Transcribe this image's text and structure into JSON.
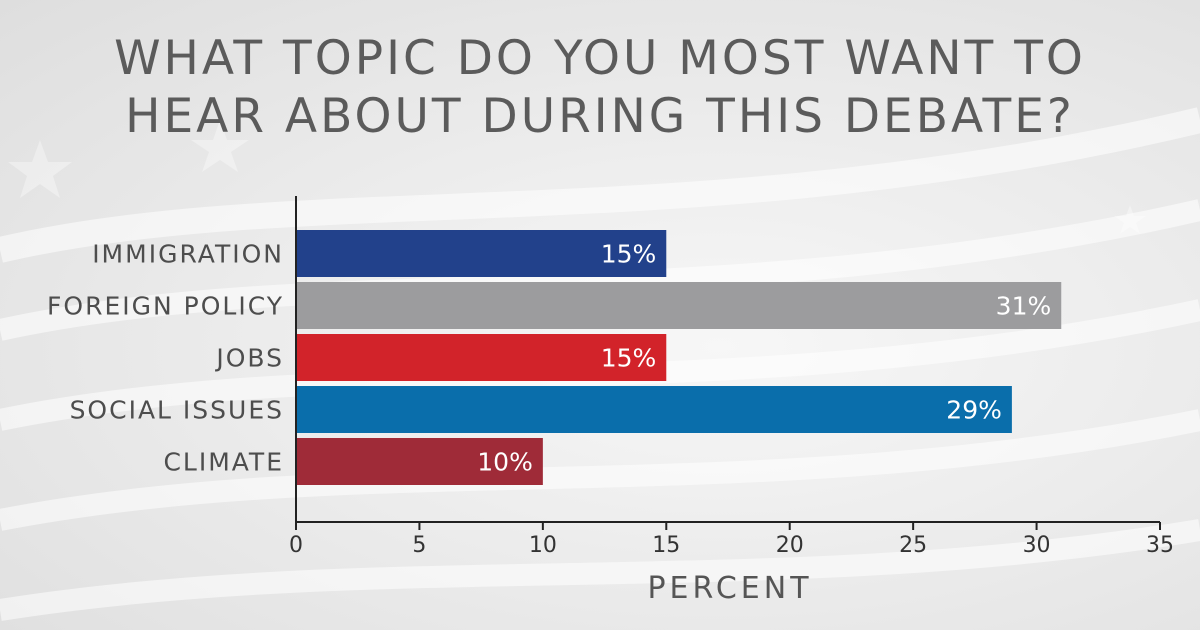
{
  "chart_data": {
    "type": "bar",
    "orientation": "horizontal",
    "title_lines": [
      "WHAT TOPIC DO YOU MOST WANT TO",
      "HEAR ABOUT DURING THIS DEBATE?"
    ],
    "categories": [
      "IMMIGRATION",
      "FOREIGN POLICY",
      "JOBS",
      "SOCIAL ISSUES",
      "CLIMATE"
    ],
    "values": [
      15,
      31,
      15,
      29,
      10
    ],
    "value_labels": [
      "15%",
      "31%",
      "15%",
      "29%",
      "10%"
    ],
    "colors": [
      "#22418b",
      "#9c9c9e",
      "#d2232a",
      "#0a6eab",
      "#9f2b38"
    ],
    "xlabel": "PERCENT",
    "ylabel": "",
    "xlim": [
      0,
      35
    ],
    "xticks": [
      0,
      5,
      10,
      15,
      20,
      25,
      30,
      35
    ],
    "grid": false,
    "legend": "none"
  }
}
